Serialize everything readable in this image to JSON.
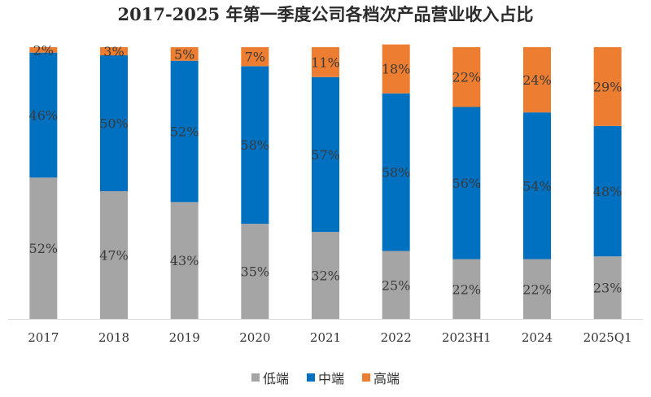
{
  "chart_data": {
    "type": "bar",
    "stacked": true,
    "title": "2017-2025 年第一季度公司各档次产品营业收入占比",
    "categories": [
      "2017",
      "2018",
      "2019",
      "2020",
      "2021",
      "2022",
      "2023H1",
      "2024",
      "2025Q1"
    ],
    "series": [
      {
        "name": "低端",
        "color": "#a5a5a5",
        "values": [
          52,
          47,
          43,
          35,
          32,
          25,
          22,
          22,
          23
        ],
        "labels": [
          "52%",
          "47%",
          "43%",
          "35%",
          "32%",
          "25%",
          "22%",
          "22%",
          "23%"
        ]
      },
      {
        "name": "中端",
        "color": "#0070c0",
        "values": [
          46,
          50,
          52,
          58,
          57,
          58,
          56,
          54,
          48
        ],
        "labels": [
          "46%",
          "50%",
          "52%",
          "58%",
          "57%",
          "58%",
          "56%",
          "54%",
          "48%"
        ]
      },
      {
        "name": "高端",
        "color": "#ed7d31",
        "values": [
          2,
          3,
          5,
          7,
          11,
          18,
          22,
          24,
          29
        ],
        "labels": [
          "2%",
          "3%",
          "5%",
          "7%",
          "11%",
          "18%",
          "22%",
          "24%",
          "29%"
        ]
      }
    ],
    "ylim": [
      0,
      100
    ],
    "legend_position": "bottom"
  }
}
